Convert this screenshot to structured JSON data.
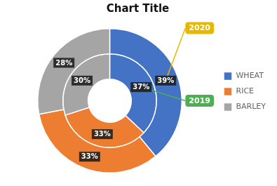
{
  "chart_data": {
    "type": "doughnut",
    "title": "Chart Title",
    "categories": [
      "WHEAT",
      "RICE",
      "BARLEY"
    ],
    "colors": [
      "#4472C4",
      "#ED7D31",
      "#A5A5A5"
    ],
    "series": [
      {
        "name": "2020",
        "values": [
          39,
          33,
          28
        ],
        "value_labels": [
          "39%",
          "33%",
          "28%"
        ]
      },
      {
        "name": "2019",
        "values": [
          37,
          33,
          30
        ],
        "value_labels": [
          "37%",
          "33%",
          "30%"
        ]
      }
    ],
    "data_labels": true,
    "legend": "right"
  }
}
